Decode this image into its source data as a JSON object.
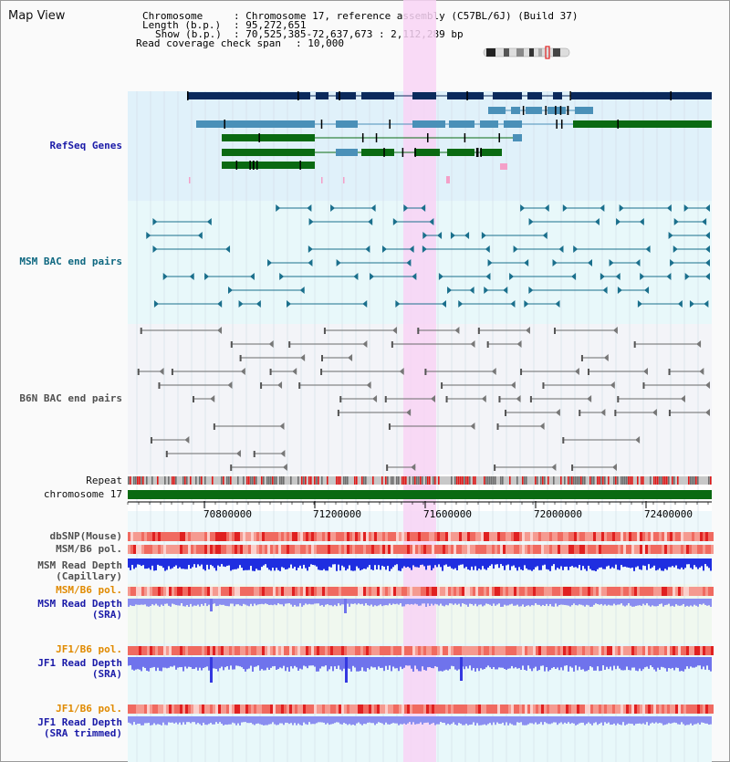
{
  "window": {
    "title": "Map View"
  },
  "info": {
    "chromosome_label": "Chromosome",
    "chromosome_value": ": Chromosome 17, reference assembly (C57BL/6J) (Build 37)",
    "length_label": "Length (b.p.)",
    "length_value": ": 95,272,651",
    "show_label": "Show (b.p.)",
    "show_value": ": 70,525,385-72,637,673 : 2,112,289 bp",
    "coverage_label": "Read coverage check span",
    "coverage_value": ": 10,000"
  },
  "tracks": {
    "refseq": "RefSeq Genes",
    "msm_bac": "MSM BAC end pairs",
    "b6n_bac": "B6N BAC end pairs",
    "repeat": "Repeat",
    "chromosome": "chromosome 17",
    "dbsnp": "dbSNP(Mouse)",
    "msm_b6_pol": "MSM/B6 pol.",
    "msm_read_depth_cap": "MSM Read Depth\n(Capillary)",
    "msm_b6_pol_2": "MSM/B6 pol.",
    "msm_read_depth_sra": "MSM Read Depth\n(SRA)",
    "jf1_b6_pol": "JF1/B6 pol.",
    "jf1_read_depth_sra": "JF1 Read Depth\n(SRA)",
    "jf1_b6_pol_2": "JF1/B6 pol.",
    "jf1_read_depth_trim": "JF1 Read Depth\n(SRA trimmed)"
  },
  "axis": {
    "ticks": [
      "70800000",
      "71200000",
      "71600000",
      "72000000",
      "72400000"
    ]
  },
  "colors": {
    "refseq_bg": "#e0f1fa",
    "msm_bg": "#e8f8fa",
    "highlight": "#f8d4f4",
    "gene_dark": "#0b2a5c",
    "gene_mid": "#4a90b8",
    "gene_green": "#0a6a12",
    "chrom_green": "#0a6a12",
    "depth_blue": "#1f2ee0",
    "depth_light": "#8a8ef0",
    "pol_red": "#f0645a"
  }
}
